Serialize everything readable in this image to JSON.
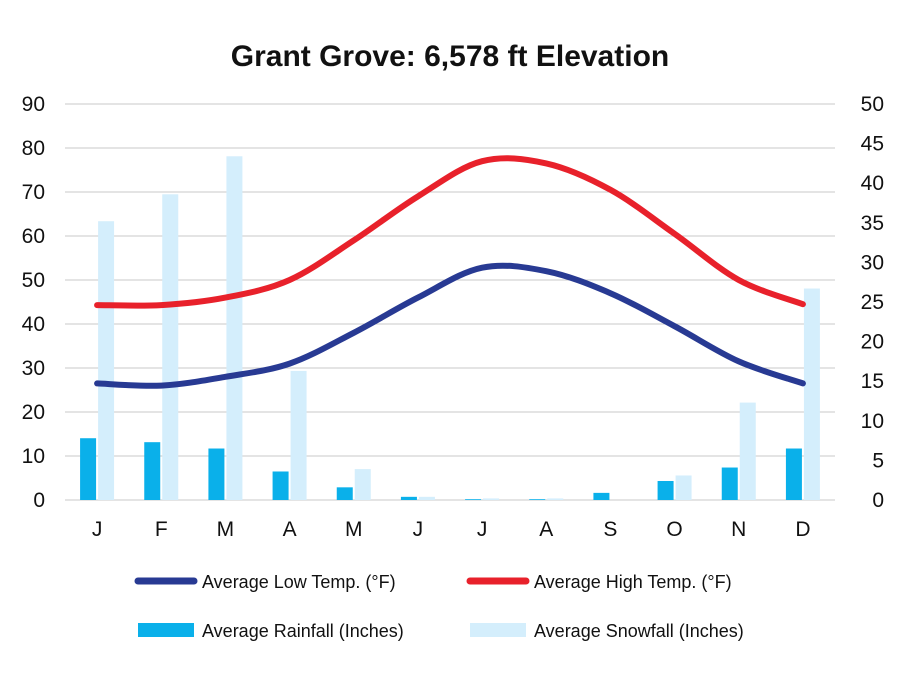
{
  "chart_data": {
    "type": "bar",
    "title": "Grant Grove: 6,578 ft Elevation",
    "categories": [
      "J",
      "F",
      "M",
      "A",
      "M",
      "J",
      "J",
      "A",
      "S",
      "O",
      "N",
      "D"
    ],
    "left_axis": {
      "ylim": [
        0,
        90
      ],
      "ticks": [
        "0",
        "10",
        "20",
        "30",
        "40",
        "50",
        "60",
        "70",
        "80",
        "90"
      ]
    },
    "right_axis": {
      "ylim": [
        0,
        50
      ],
      "ticks": [
        "0",
        "5",
        "10",
        "15",
        "20",
        "25",
        "30",
        "35",
        "40",
        "45",
        "50"
      ]
    },
    "grid": true,
    "legend_position": "bottom",
    "series": [
      {
        "name": "Average Low Temp. (°F)",
        "kind": "line",
        "axis": "left",
        "color": "#283a93",
        "values": [
          26.5,
          26,
          28,
          31,
          38,
          46,
          52.8,
          52,
          47,
          39.5,
          31.5,
          26.5
        ]
      },
      {
        "name": "Average High Temp. (°F)",
        "kind": "line",
        "axis": "left",
        "color": "#e8212b",
        "values": [
          44.3,
          44.3,
          46,
          50,
          59,
          69,
          77,
          76.5,
          70.5,
          60.5,
          50,
          44.5
        ]
      },
      {
        "name": "Average Rainfall (Inches)",
        "kind": "bar",
        "axis": "right",
        "color": "#0ab0ea",
        "values": [
          7.8,
          7.3,
          6.5,
          3.6,
          1.6,
          0.4,
          0.1,
          0.1,
          0.9,
          2.4,
          4.1,
          6.5
        ]
      },
      {
        "name": "Average Snowfall (Inches)",
        "kind": "bar",
        "axis": "right",
        "color": "#d4eefc",
        "values": [
          35.2,
          38.6,
          43.4,
          16.3,
          3.9,
          0.4,
          0.2,
          0.2,
          0,
          3.1,
          12.3,
          26.7
        ]
      }
    ]
  }
}
